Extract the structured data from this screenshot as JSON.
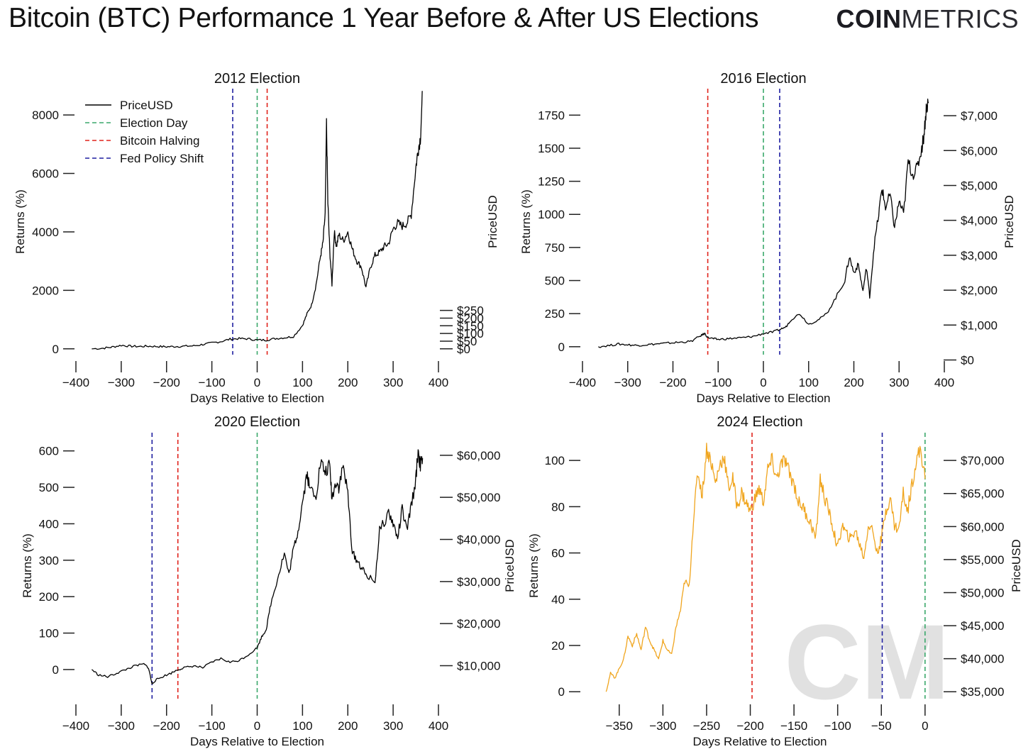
{
  "header": {
    "title": "Bitcoin (BTC) Performance 1 Year Before & After US Elections",
    "logo_bold": "COIN",
    "logo_light": "METRICS"
  },
  "watermark": "CM",
  "colors": {
    "price_line": "#000000",
    "price_line_2024": "#f0a51e",
    "election_day": "#3aa86b",
    "bitcoin_halving": "#e0231c",
    "fed_policy_shift": "#1f1fa0"
  },
  "chart_data": [
    {
      "type": "line",
      "title": "2012 Election",
      "xlabel": "Days Relative to Election",
      "ylabel": "Returns (%)",
      "ylabel_right": "PriceUSD",
      "xlim": [
        -400,
        400
      ],
      "xticks": [
        -400,
        -300,
        -200,
        -100,
        0,
        100,
        200,
        300,
        400
      ],
      "ylim": [
        -200,
        8900
      ],
      "yticks": [
        0,
        2000,
        4000,
        6000,
        8000
      ],
      "ytick_labels": [
        "0",
        "2000",
        "4000",
        "6000",
        "8000"
      ],
      "y2_ticks": [
        {
          "v": 0,
          "label": "$0"
        },
        {
          "v": 50,
          "label": "$50"
        },
        {
          "v": 100,
          "label": "$100"
        },
        {
          "v": 150,
          "label": "$150"
        },
        {
          "v": 200,
          "label": "$200"
        },
        {
          "v": 250,
          "label": "$250"
        }
      ],
      "y2_map": [
        0,
        5.25
      ],
      "legend": [
        "PriceUSD",
        "Election Day",
        "Bitcoin Halving",
        "Fed Policy Shift"
      ],
      "legend_position": "top-left",
      "vlines": [
        {
          "kind": "fed_policy_shift",
          "x": -54
        },
        {
          "kind": "election_day",
          "x": 0
        },
        {
          "kind": "bitcoin_halving",
          "x": 22
        }
      ],
      "series": {
        "x": [
          -365,
          -340,
          -320,
          -300,
          -280,
          -260,
          -240,
          -220,
          -200,
          -180,
          -160,
          -140,
          -120,
          -100,
          -80,
          -60,
          -40,
          -20,
          0,
          20,
          40,
          60,
          80,
          100,
          110,
          120,
          130,
          140,
          145,
          150,
          153,
          156,
          160,
          165,
          170,
          175,
          180,
          190,
          200,
          210,
          220,
          230,
          240,
          250,
          260,
          270,
          280,
          290,
          300,
          310,
          320,
          330,
          340,
          350,
          355,
          360,
          365
        ],
        "y": [
          0,
          20,
          60,
          120,
          90,
          80,
          90,
          80,
          70,
          80,
          90,
          100,
          150,
          200,
          250,
          330,
          350,
          340,
          300,
          300,
          350,
          380,
          420,
          800,
          1200,
          1500,
          2200,
          3200,
          3600,
          4600,
          7700,
          5000,
          3400,
          2200,
          4000,
          3500,
          3900,
          3700,
          4000,
          3400,
          3000,
          2800,
          2100,
          2800,
          3200,
          3300,
          3500,
          3600,
          4100,
          4300,
          4200,
          4300,
          4600,
          6200,
          6800,
          7200,
          8800
        ]
      }
    },
    {
      "type": "line",
      "title": "2016 Election",
      "xlabel": "Days Relative to Election",
      "ylabel": "Returns (%)",
      "ylabel_right": "PriceUSD",
      "xlim": [
        -400,
        400
      ],
      "xticks": [
        -400,
        -300,
        -200,
        -100,
        0,
        100,
        200,
        300,
        400
      ],
      "ylim": [
        -60,
        1950
      ],
      "yticks": [
        0,
        250,
        500,
        750,
        1000,
        1250,
        1500,
        1750
      ],
      "ytick_labels": [
        "0",
        "250",
        "500",
        "750",
        "1000",
        "1250",
        "1500",
        "1750"
      ],
      "y2_ticks": [
        {
          "v": 0,
          "label": "$0"
        },
        {
          "v": 1000,
          "label": "$1,000"
        },
        {
          "v": 2000,
          "label": "$2,000"
        },
        {
          "v": 3000,
          "label": "$3,000"
        },
        {
          "v": 4000,
          "label": "$4,000"
        },
        {
          "v": 5000,
          "label": "$5,000"
        },
        {
          "v": 6000,
          "label": "$6,000"
        },
        {
          "v": 7000,
          "label": "$7,000"
        }
      ],
      "y2_map": [
        -100,
        0.2637
      ],
      "vlines": [
        {
          "kind": "bitcoin_halving",
          "x": -123
        },
        {
          "kind": "election_day",
          "x": 0
        },
        {
          "kind": "fed_policy_shift",
          "x": 36
        }
      ],
      "series": {
        "x": [
          -365,
          -340,
          -320,
          -300,
          -280,
          -260,
          -240,
          -220,
          -200,
          -180,
          -160,
          -140,
          -130,
          -123,
          -110,
          -100,
          -80,
          -60,
          -40,
          -20,
          0,
          20,
          36,
          50,
          60,
          80,
          100,
          120,
          140,
          160,
          180,
          190,
          200,
          210,
          220,
          228,
          235,
          245,
          255,
          262,
          270,
          280,
          290,
          300,
          310,
          320,
          330,
          340,
          350,
          355,
          360,
          365
        ],
        "y": [
          0,
          10,
          20,
          15,
          10,
          15,
          20,
          25,
          30,
          35,
          40,
          80,
          100,
          70,
          60,
          55,
          60,
          65,
          70,
          80,
          100,
          110,
          130,
          150,
          200,
          250,
          170,
          200,
          250,
          370,
          500,
          680,
          560,
          620,
          420,
          600,
          380,
          770,
          1000,
          1200,
          1050,
          1150,
          900,
          1100,
          1000,
          1400,
          1300,
          1350,
          1500,
          1600,
          1800,
          1850
        ]
      }
    },
    {
      "type": "line",
      "title": "2020 Election",
      "xlabel": "Days Relative to Election",
      "ylabel": "Returns (%)",
      "ylabel_right": "PriceUSD",
      "xlim": [
        -400,
        400
      ],
      "xticks": [
        -400,
        -300,
        -200,
        -100,
        0,
        100,
        200,
        300,
        400
      ],
      "ylim": [
        -80,
        650
      ],
      "yticks": [
        0,
        100,
        200,
        300,
        400,
        500,
        600
      ],
      "ytick_labels": [
        "0",
        "100",
        "200",
        "300",
        "400",
        "500",
        "600"
      ],
      "y2_ticks": [
        {
          "v": 10000,
          "label": "$10,000"
        },
        {
          "v": 20000,
          "label": "$20,000"
        },
        {
          "v": 30000,
          "label": "$30,000"
        },
        {
          "v": 40000,
          "label": "$40,000"
        },
        {
          "v": 50000,
          "label": "$50,000"
        },
        {
          "v": 60000,
          "label": "$60,000"
        }
      ],
      "y2_map": [
        -105,
        0.01155
      ],
      "vlines": [
        {
          "kind": "fed_policy_shift",
          "x": -232
        },
        {
          "kind": "bitcoin_halving",
          "x": -175
        },
        {
          "kind": "election_day",
          "x": 0
        }
      ],
      "series": {
        "x": [
          -365,
          -350,
          -330,
          -310,
          -290,
          -270,
          -250,
          -240,
          -232,
          -225,
          -210,
          -190,
          -175,
          -160,
          -140,
          -120,
          -100,
          -80,
          -60,
          -40,
          -20,
          0,
          10,
          20,
          30,
          45,
          60,
          70,
          80,
          90,
          100,
          110,
          115,
          130,
          140,
          150,
          160,
          165,
          175,
          180,
          190,
          200,
          210,
          220,
          230,
          240,
          260,
          270,
          290,
          300,
          310,
          320,
          330,
          340,
          350,
          355,
          360,
          365
        ],
        "y": [
          0,
          -15,
          -20,
          -10,
          0,
          10,
          15,
          5,
          -40,
          -30,
          -20,
          -10,
          0,
          5,
          10,
          5,
          20,
          30,
          20,
          25,
          40,
          60,
          90,
          110,
          180,
          250,
          320,
          260,
          330,
          380,
          460,
          540,
          500,
          480,
          570,
          540,
          560,
          470,
          520,
          500,
          560,
          480,
          320,
          300,
          280,
          260,
          240,
          380,
          430,
          400,
          360,
          440,
          380,
          450,
          520,
          600,
          560,
          580
        ]
      }
    },
    {
      "type": "line",
      "title": "2024 Election",
      "xlabel": "Days Relative to Election",
      "ylabel": "Returns (%)",
      "ylabel_right": "PriceUSD",
      "xlim": [
        -375,
        5
      ],
      "xticks": [
        -350,
        -300,
        -250,
        -200,
        -150,
        -100,
        -50,
        0
      ],
      "ylim": [
        -3,
        112
      ],
      "yticks": [
        0,
        20,
        40,
        60,
        80,
        100
      ],
      "ytick_labels": [
        "0",
        "20",
        "40",
        "60",
        "80",
        "100"
      ],
      "y2_ticks": [
        {
          "v": 35000,
          "label": "$35,000"
        },
        {
          "v": 40000,
          "label": "$40,000"
        },
        {
          "v": 45000,
          "label": "$45,000"
        },
        {
          "v": 50000,
          "label": "$50,000"
        },
        {
          "v": 55000,
          "label": "$55,000"
        },
        {
          "v": 60000,
          "label": "$60,000"
        },
        {
          "v": 65000,
          "label": "$65,000"
        },
        {
          "v": 70000,
          "label": "$70,000"
        }
      ],
      "y2_map": [
        -100,
        0.002857
      ],
      "vlines": [
        {
          "kind": "bitcoin_halving",
          "x": -198
        },
        {
          "kind": "fed_policy_shift",
          "x": -49
        },
        {
          "kind": "election_day",
          "x": 0
        }
      ],
      "series": {
        "x": [
          -365,
          -360,
          -355,
          -350,
          -345,
          -340,
          -335,
          -330,
          -325,
          -320,
          -315,
          -310,
          -305,
          -300,
          -295,
          -290,
          -285,
          -280,
          -275,
          -270,
          -265,
          -260,
          -255,
          -250,
          -245,
          -240,
          -235,
          -230,
          -225,
          -220,
          -215,
          -210,
          -205,
          -200,
          -195,
          -190,
          -185,
          -180,
          -175,
          -170,
          -165,
          -160,
          -155,
          -150,
          -145,
          -140,
          -135,
          -130,
          -125,
          -120,
          -115,
          -110,
          -105,
          -100,
          -95,
          -90,
          -85,
          -80,
          -75,
          -70,
          -65,
          -60,
          -55,
          -50,
          -45,
          -40,
          -35,
          -30,
          -25,
          -20,
          -15,
          -10,
          -5,
          0
        ],
        "y": [
          0,
          8,
          6,
          10,
          14,
          24,
          20,
          25,
          18,
          28,
          22,
          18,
          14,
          22,
          18,
          16,
          28,
          35,
          48,
          45,
          75,
          95,
          85,
          105,
          100,
          90,
          98,
          102,
          88,
          92,
          80,
          86,
          82,
          78,
          83,
          88,
          82,
          96,
          100,
          92,
          98,
          100,
          94,
          90,
          82,
          80,
          76,
          72,
          66,
          92,
          84,
          78,
          70,
          62,
          72,
          68,
          66,
          70,
          64,
          58,
          72,
          70,
          60,
          66,
          78,
          84,
          72,
          70,
          86,
          78,
          90,
          100,
          105,
          92
        ]
      }
    }
  ]
}
